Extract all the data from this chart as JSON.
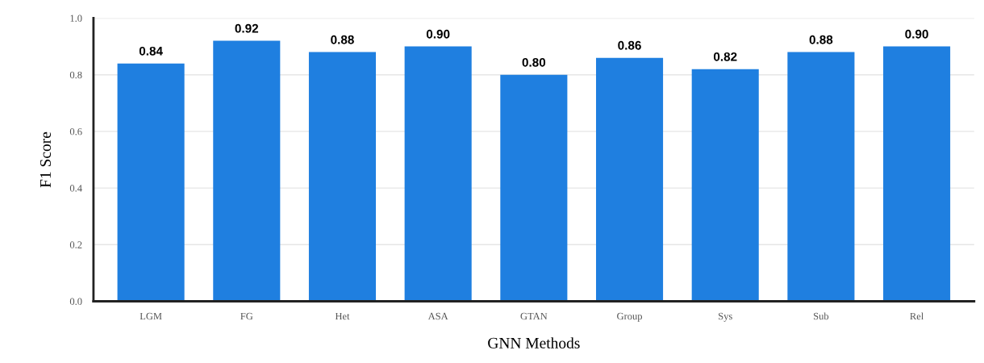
{
  "chart_data": {
    "type": "bar",
    "xlabel": "GNN Methods",
    "ylabel": "F1 Score",
    "categories": [
      "LGM",
      "FG",
      "Het",
      "ASA",
      "GTAN",
      "Group",
      "Sys",
      "Sub",
      "Rel"
    ],
    "values": [
      0.84,
      0.92,
      0.88,
      0.9,
      0.8,
      0.86,
      0.82,
      0.88,
      0.9
    ],
    "color": "#1f7fe0",
    "ylim": [
      0,
      1.0
    ],
    "yticks": [
      {
        "value": 0,
        "label": "0.0"
      },
      {
        "value": 0.2,
        "label": "0.2"
      },
      {
        "value": 0.4,
        "label": "0.4"
      },
      {
        "value": 0.6,
        "label": "0.6"
      },
      {
        "value": 0.8,
        "label": "0.8"
      },
      {
        "value": 1.0,
        "label": "1.0"
      }
    ],
    "value_labels": [
      "0.84",
      "0.92",
      "0.88",
      "0.90",
      "0.80",
      "0.86",
      "0.82",
      "0.88",
      "0.90"
    ],
    "grid": "y",
    "legend": false
  }
}
